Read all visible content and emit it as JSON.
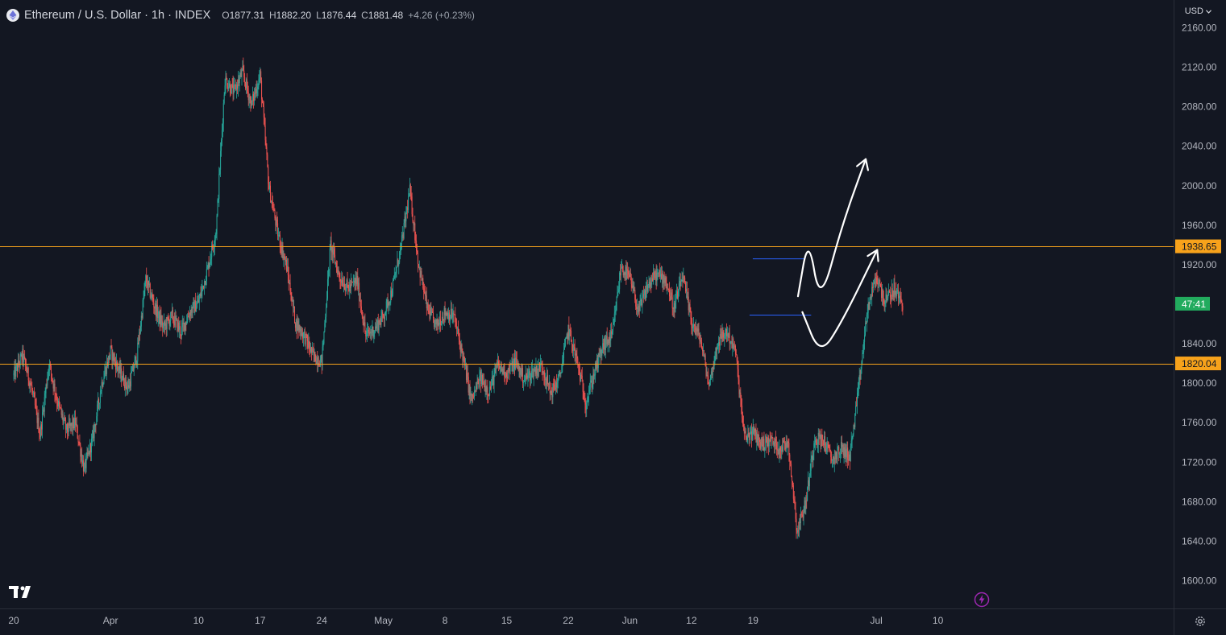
{
  "header": {
    "symbol": "Ethereum / U.S. Dollar · 1h · INDEX",
    "open_label": "O",
    "open": "1877.31",
    "high_label": "H",
    "high": "1882.20",
    "low_label": "L",
    "low": "1876.44",
    "close_label": "C",
    "close": "1881.48",
    "change": "+4.26 (+0.23%)"
  },
  "currency": "USD",
  "colors": {
    "background": "#131722",
    "up": "#26a69a",
    "down": "#ef5350",
    "level_line": "#f7a21b",
    "level_badge": "#f7a21b",
    "countdown_badge": "#22ab5e",
    "range_line": "#2962ff",
    "drawing": "#ffffff",
    "axis_text": "#b2b5be",
    "flash_icon": "#9c27b0"
  },
  "icons": {
    "logo": "ethereum-logo-icon",
    "tradingview": "tradingview-logo-icon",
    "settings": "gear-icon",
    "flash": "lightning-icon"
  },
  "chart_data": {
    "type": "candlestick",
    "title": "Ethereum / U.S. Dollar · 1h · INDEX",
    "timeframe": "1h",
    "ylim": [
      1580,
      2180
    ],
    "y_ticks": [
      "2160.00",
      "2120.00",
      "2080.00",
      "2040.00",
      "2000.00",
      "1960.00",
      "1920.00",
      "1840.00",
      "1800.00",
      "1760.00",
      "1720.00",
      "1680.00",
      "1640.00",
      "1600.00"
    ],
    "x_ticks": [
      "20",
      "Apr",
      "10",
      "17",
      "24",
      "May",
      "8",
      "15",
      "22",
      "Jun",
      "12",
      "19",
      "Jul",
      "10"
    ],
    "x_tick_index": [
      0,
      11,
      21,
      28,
      35,
      42,
      49,
      56,
      63,
      70,
      77,
      84,
      98,
      105
    ],
    "x_range_days": [
      0,
      109
    ],
    "grid": false,
    "horizontal_levels": [
      {
        "value": 1938.65,
        "label": "1938.65"
      },
      {
        "value": 1820.04,
        "label": "1820.04"
      }
    ],
    "countdown": {
      "label": "47:41",
      "value": 1880.5
    },
    "range_box": {
      "day_start": 83.6,
      "day_end": 90.6,
      "top": 1926,
      "bottom": 1869
    },
    "projection_paths": [
      [
        [
          89.1,
          1888
        ],
        [
          90.3,
          1950
        ],
        [
          91.6,
          1878
        ],
        [
          94.1,
          1960
        ],
        [
          96.8,
          2027
        ]
      ],
      [
        [
          89.6,
          1872
        ],
        [
          91.6,
          1828
        ],
        [
          94.1,
          1862
        ],
        [
          98.1,
          1935
        ]
      ]
    ],
    "price_path": [
      [
        0,
        1808
      ],
      [
        1,
        1828
      ],
      [
        2,
        1796
      ],
      [
        3,
        1748
      ],
      [
        4,
        1820
      ],
      [
        5,
        1780
      ],
      [
        6,
        1752
      ],
      [
        7,
        1760
      ],
      [
        8,
        1712
      ],
      [
        9,
        1745
      ],
      [
        10,
        1800
      ],
      [
        11,
        1832
      ],
      [
        12,
        1812
      ],
      [
        13,
        1795
      ],
      [
        14,
        1828
      ],
      [
        15,
        1905
      ],
      [
        16,
        1878
      ],
      [
        17,
        1856
      ],
      [
        18,
        1868
      ],
      [
        19,
        1852
      ],
      [
        20,
        1872
      ],
      [
        21,
        1882
      ],
      [
        22,
        1915
      ],
      [
        23,
        1955
      ],
      [
        24,
        2108
      ],
      [
        25,
        2095
      ],
      [
        26,
        2115
      ],
      [
        27,
        2082
      ],
      [
        28,
        2112
      ],
      [
        29,
        1998
      ],
      [
        30,
        1952
      ],
      [
        31,
        1918
      ],
      [
        32,
        1862
      ],
      [
        33,
        1848
      ],
      [
        34,
        1828
      ],
      [
        35,
        1822
      ],
      [
        36,
        1940
      ],
      [
        37,
        1908
      ],
      [
        38,
        1896
      ],
      [
        39,
        1904
      ],
      [
        40,
        1848
      ],
      [
        41,
        1855
      ],
      [
        42,
        1868
      ],
      [
        43,
        1895
      ],
      [
        44,
        1938
      ],
      [
        45,
        1995
      ],
      [
        46,
        1920
      ],
      [
        47,
        1875
      ],
      [
        48,
        1858
      ],
      [
        49,
        1872
      ],
      [
        50,
        1868
      ],
      [
        51,
        1828
      ],
      [
        52,
        1782
      ],
      [
        53,
        1805
      ],
      [
        54,
        1792
      ],
      [
        55,
        1818
      ],
      [
        56,
        1810
      ],
      [
        57,
        1822
      ],
      [
        58,
        1804
      ],
      [
        59,
        1812
      ],
      [
        60,
        1818
      ],
      [
        61,
        1790
      ],
      [
        62,
        1805
      ],
      [
        63,
        1855
      ],
      [
        64,
        1822
      ],
      [
        65,
        1780
      ],
      [
        66,
        1812
      ],
      [
        67,
        1838
      ],
      [
        68,
        1848
      ],
      [
        69,
        1918
      ],
      [
        70,
        1906
      ],
      [
        71,
        1872
      ],
      [
        72,
        1898
      ],
      [
        73,
        1910
      ],
      [
        74,
        1906
      ],
      [
        75,
        1876
      ],
      [
        76,
        1908
      ],
      [
        77,
        1862
      ],
      [
        78,
        1845
      ],
      [
        79,
        1798
      ],
      [
        80,
        1842
      ],
      [
        81,
        1852
      ],
      [
        82,
        1832
      ],
      [
        83,
        1745
      ],
      [
        84,
        1750
      ],
      [
        85,
        1738
      ],
      [
        86,
        1742
      ],
      [
        87,
        1734
      ],
      [
        88,
        1740
      ],
      [
        89,
        1650
      ],
      [
        90,
        1680
      ],
      [
        91,
        1745
      ],
      [
        92,
        1742
      ],
      [
        93,
        1722
      ],
      [
        94,
        1734
      ],
      [
        95,
        1726
      ],
      [
        96,
        1795
      ],
      [
        97,
        1875
      ],
      [
        98,
        1908
      ],
      [
        99,
        1882
      ],
      [
        100,
        1895
      ],
      [
        101,
        1881
      ]
    ]
  }
}
